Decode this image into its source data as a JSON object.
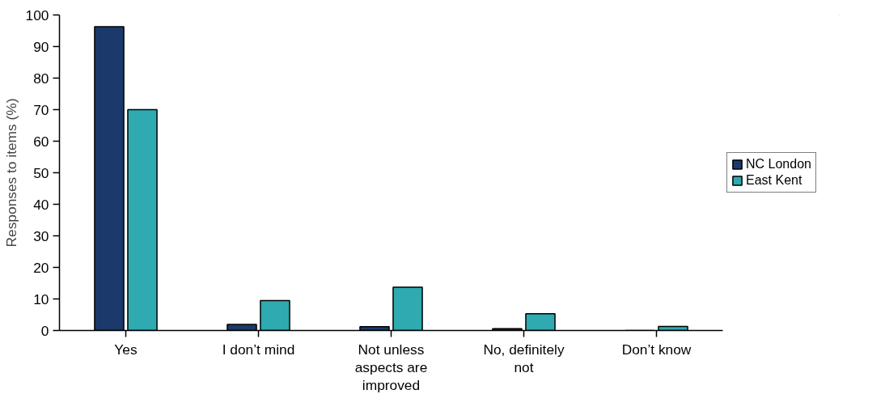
{
  "chart_data": {
    "type": "bar",
    "ylabel": "Responses to items (%)",
    "categories": [
      "Yes",
      "I don’t mind",
      "Not unless aspects are improved",
      "No, definitely not",
      "Don’t know"
    ],
    "series": [
      {
        "name": "NC London",
        "color": "#1b3a6b",
        "values": [
          96.3,
          1.9,
          1.2,
          0.6,
          0
        ]
      },
      {
        "name": "East Kent",
        "color": "#2eaab0",
        "values": [
          70,
          9.5,
          13.7,
          5.3,
          1.3
        ]
      }
    ],
    "ylim": [
      0,
      100
    ],
    "yticks": [
      0,
      10,
      20,
      30,
      40,
      50,
      60,
      70,
      80,
      90,
      100
    ],
    "grid": false,
    "legend": "right"
  }
}
